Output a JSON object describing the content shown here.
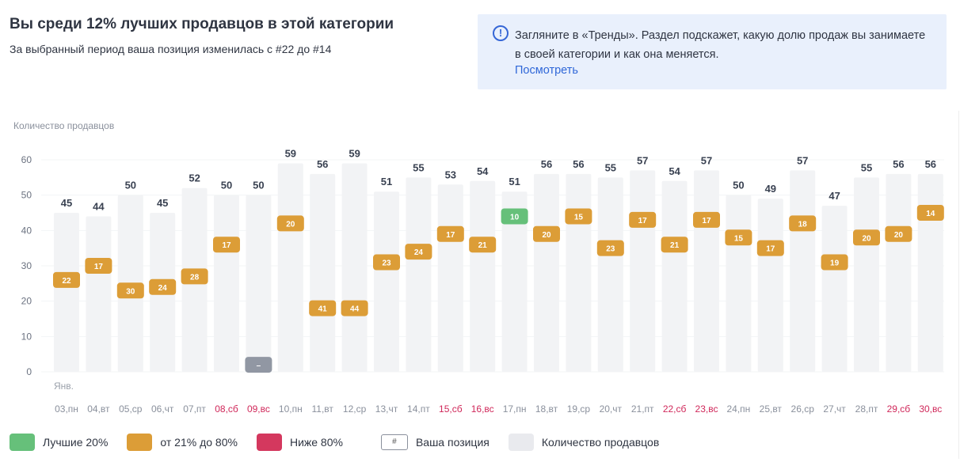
{
  "header": {
    "title": "Вы среди 12% лучших продавцов в этой категории",
    "subtitle": "За выбранный период ваша позиция изменилась с #22 до #14"
  },
  "info": {
    "icon": "info-icon",
    "text": "Загляните в «Тренды». Раздел подскажет, какую долю продаж вы занимаете в своей категории и как она меняется.",
    "link": "Посмотреть"
  },
  "legend": {
    "best": "Лучшие 20%",
    "mid": "от 21% до 80%",
    "low": "Ниже 80%",
    "pos_symbol": "#",
    "pos": "Ваша позиция",
    "count": "Количество продавцов"
  },
  "colors": {
    "best": "#66c07a",
    "mid": "#dc9d37",
    "low": "#d4385e",
    "none": "#9197a3",
    "bar": "#f2f3f5",
    "weekend": "#d0285a",
    "text_axis": "#8a909c"
  },
  "chart_data": {
    "type": "bar",
    "ylabel": "Количество продавцов",
    "ylim": [
      0,
      60
    ],
    "yticks": [
      0,
      10,
      20,
      30,
      40,
      50,
      60
    ],
    "month_label": "Янв.",
    "categories": [
      "03,пн",
      "04,вт",
      "05,ср",
      "06,чт",
      "07,пт",
      "08,сб",
      "09,вс",
      "10,пн",
      "11,вт",
      "12,ср",
      "13,чт",
      "14,пт",
      "15,сб",
      "16,вс",
      "17,пн",
      "18,вт",
      "19,ср",
      "20,чт",
      "21,пт",
      "22,сб",
      "23,вс",
      "24,пн",
      "25,вт",
      "26,ср",
      "27,чт",
      "28,пт",
      "29,сб",
      "30,вс"
    ],
    "weekend": [
      false,
      false,
      false,
      false,
      false,
      true,
      true,
      false,
      false,
      false,
      false,
      false,
      true,
      true,
      false,
      false,
      false,
      false,
      false,
      true,
      true,
      false,
      false,
      false,
      false,
      false,
      true,
      true
    ],
    "sellers": [
      45,
      44,
      50,
      45,
      52,
      50,
      50,
      59,
      56,
      59,
      51,
      55,
      53,
      54,
      51,
      56,
      56,
      55,
      57,
      54,
      57,
      50,
      49,
      57,
      47,
      55,
      56,
      56
    ],
    "position": [
      "22",
      "17",
      "30",
      "24",
      "28",
      "17",
      "–",
      "20",
      "41",
      "44",
      "23",
      "24",
      "17",
      "21",
      "10",
      "20",
      "15",
      "23",
      "17",
      "21",
      "17",
      "15",
      "17",
      "18",
      "19",
      "20",
      "20",
      "14"
    ],
    "position_level": [
      "mid",
      "mid",
      "mid",
      "mid",
      "mid",
      "mid",
      "none",
      "mid",
      "mid",
      "mid",
      "mid",
      "mid",
      "mid",
      "mid",
      "best",
      "mid",
      "mid",
      "mid",
      "mid",
      "mid",
      "mid",
      "mid",
      "mid",
      "mid",
      "mid",
      "mid",
      "mid",
      "mid"
    ]
  }
}
